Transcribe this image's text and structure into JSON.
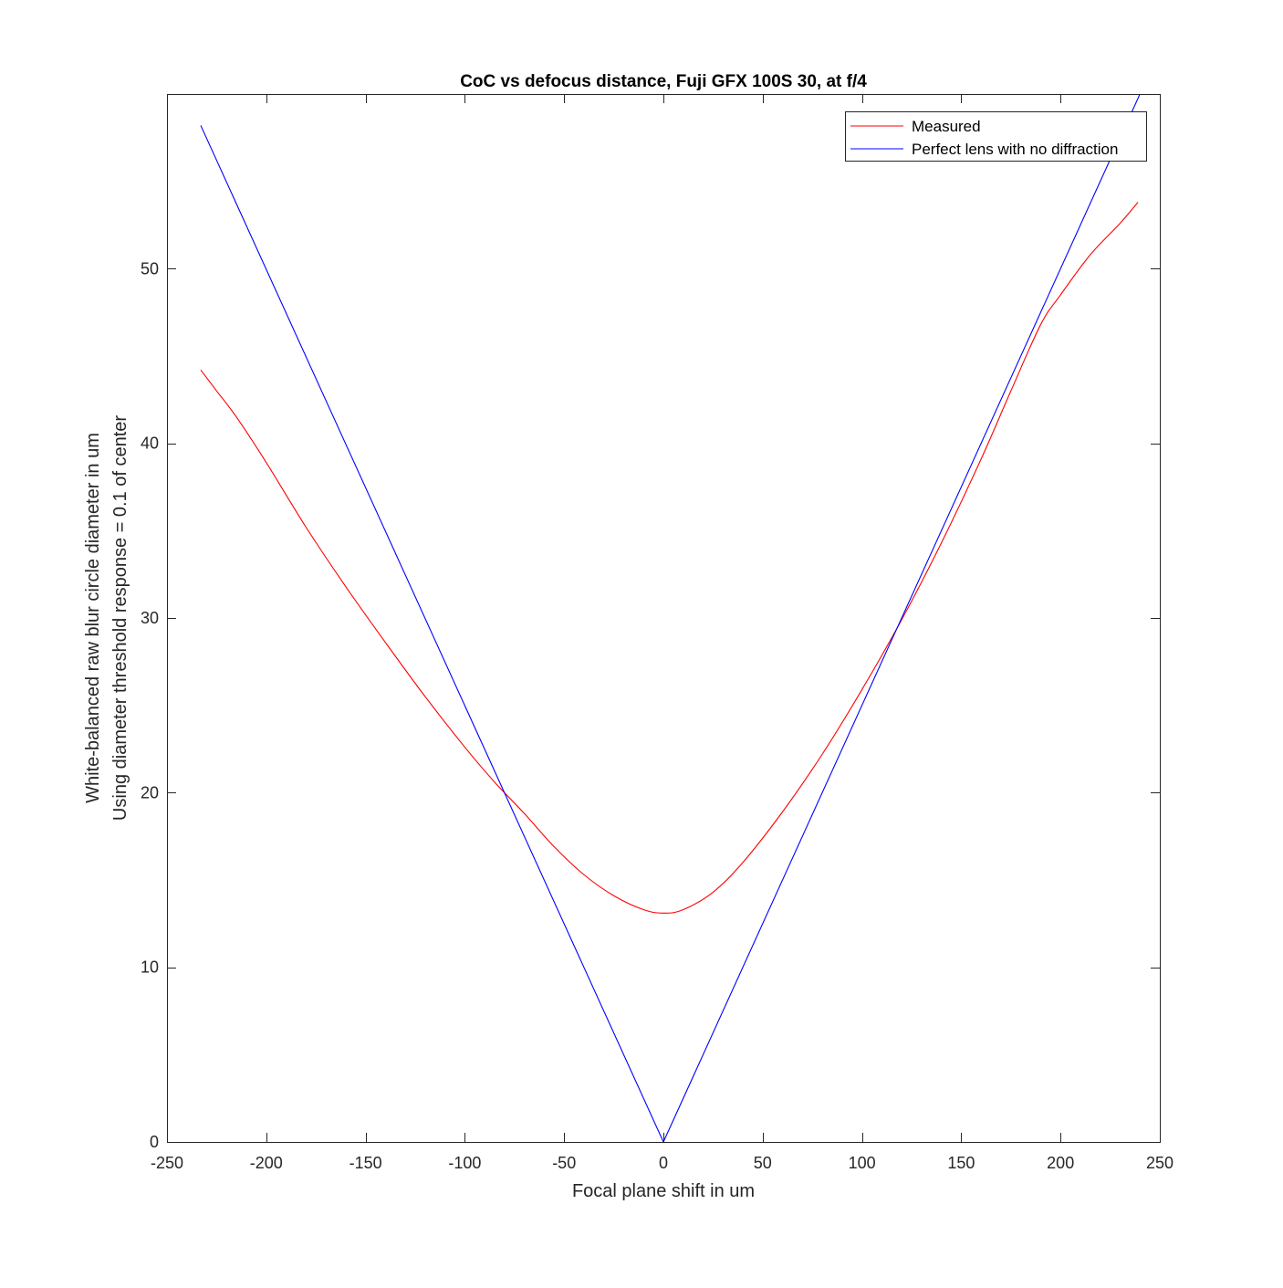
{
  "chart_data": {
    "type": "line",
    "title": "CoC vs defocus distance, Fuji GFX 100S 30, at f/4",
    "xlabel": "Focal plane shift in um",
    "ylabel_lines": [
      "White-balanced raw blur circle diameter in um",
      "Using diameter threshold response = 0.1 of center"
    ],
    "xlim": [
      -250,
      250
    ],
    "ylim": [
      0,
      60
    ],
    "xticks": [
      -250,
      -200,
      -150,
      -100,
      -50,
      0,
      50,
      100,
      150,
      200,
      250
    ],
    "yticks": [
      0,
      10,
      20,
      30,
      40,
      50
    ],
    "grid": false,
    "legend_position": "top-right",
    "series": [
      {
        "name": "Measured",
        "color": "#ff0000",
        "x": [
          -233,
          -225,
          -215,
          -200,
          -180,
          -160,
          -140,
          -120,
          -100,
          -85,
          -70,
          -55,
          -40,
          -25,
          -10,
          0,
          10,
          25,
          40,
          60,
          80,
          100,
          120,
          140,
          160,
          175,
          190,
          200,
          215,
          230,
          239
        ],
        "y": [
          44.2,
          43.0,
          41.5,
          38.9,
          35.2,
          31.8,
          28.6,
          25.5,
          22.6,
          20.6,
          18.8,
          16.9,
          15.3,
          14.1,
          13.3,
          13.1,
          13.3,
          14.3,
          16.0,
          18.9,
          22.2,
          25.9,
          29.9,
          34.3,
          39.1,
          43.0,
          46.8,
          48.5,
          50.8,
          52.6,
          53.8
        ]
      },
      {
        "name": "Perfect lens with no diffraction",
        "color": "#0000ff",
        "x": [
          -233,
          0,
          240
        ],
        "y": [
          58.2,
          0,
          60.0
        ]
      }
    ]
  }
}
